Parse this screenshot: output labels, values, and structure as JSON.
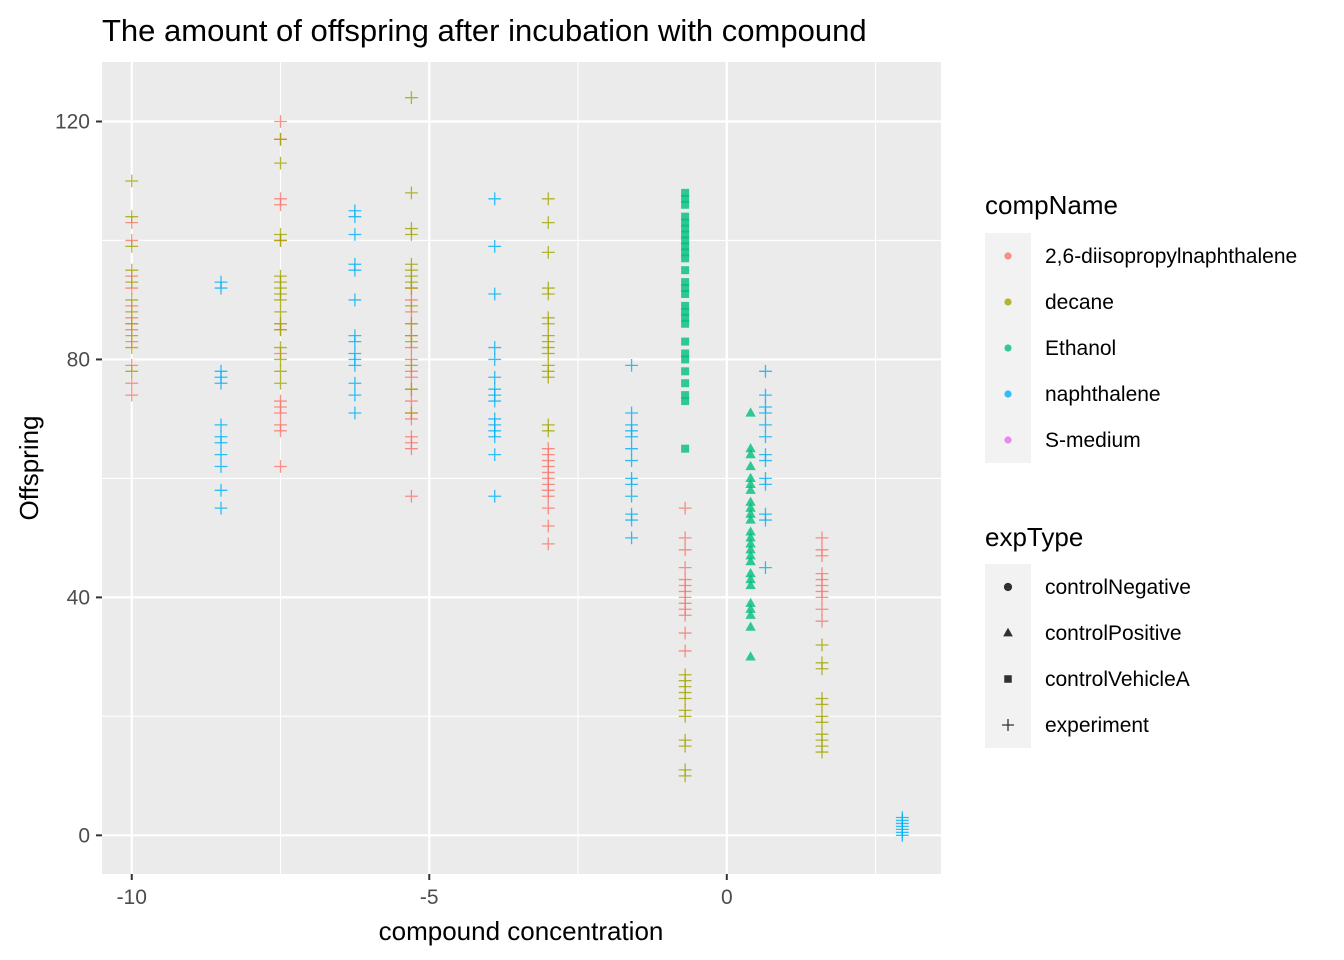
{
  "chart_data": {
    "type": "scatter",
    "title": "The amount of offspring after incubation with compound",
    "xlabel": "compound concentration",
    "ylabel": "Offspring",
    "xlim": [
      -10.5,
      3.6
    ],
    "ylim": [
      -6.5,
      130
    ],
    "xticks": [
      -10,
      -5,
      0
    ],
    "xtick_labels": [
      "-10",
      "-5",
      "0"
    ],
    "yticks": [
      0,
      40,
      80,
      120
    ],
    "ytick_labels": [
      "0",
      "40",
      "80",
      "120"
    ],
    "grid": true,
    "legend_placement": "right",
    "colors": {
      "2,6-diisopropylnaphthalene": "#F8766D",
      "decane": "#A3A500",
      "Ethanol": "#00BF7D",
      "naphthalene": "#00B0F6",
      "S-medium": "#E76BF3"
    },
    "legend_color": {
      "title": "compName",
      "items": [
        "2,6-diisopropylnaphthalene",
        "decane",
        "Ethanol",
        "naphthalene",
        "S-medium"
      ]
    },
    "legend_shape": {
      "title": "expType",
      "items": [
        {
          "label": "controlNegative",
          "shape": "circle"
        },
        {
          "label": "controlPositive",
          "shape": "triangle"
        },
        {
          "label": "controlVehicleA",
          "shape": "square"
        },
        {
          "label": "experiment",
          "shape": "plus"
        }
      ]
    },
    "series": [
      {
        "compName": "2,6-diisopropylnaphthalene",
        "expType": "experiment",
        "x": -10,
        "y": [
          74,
          76,
          79,
          83,
          85,
          86,
          87,
          89,
          92,
          94,
          100,
          103
        ]
      },
      {
        "compName": "decane",
        "expType": "experiment",
        "x": -10,
        "y": [
          78,
          82,
          84,
          86,
          88,
          90,
          93,
          95,
          99,
          104,
          110
        ]
      },
      {
        "compName": "naphthalene",
        "expType": "experiment",
        "x": -8.5,
        "y": [
          55,
          58,
          62,
          64,
          66,
          67,
          69,
          76,
          77,
          78,
          92,
          93
        ]
      },
      {
        "compName": "2,6-diisopropylnaphthalene",
        "expType": "experiment",
        "x": -7.5,
        "y": [
          62,
          68,
          69,
          71,
          72,
          73,
          81,
          85,
          86,
          100,
          106,
          107,
          117,
          120
        ]
      },
      {
        "compName": "decane",
        "expType": "experiment",
        "x": -7.5,
        "y": [
          76,
          78,
          80,
          82,
          85,
          86,
          88,
          90,
          91,
          92,
          93,
          94,
          100,
          101,
          113,
          117
        ]
      },
      {
        "compName": "naphthalene",
        "expType": "experiment",
        "x": -6.25,
        "y": [
          71,
          74,
          76,
          79,
          80,
          81,
          83,
          84,
          90,
          95,
          96,
          101,
          104,
          105
        ]
      },
      {
        "compName": "2,6-diisopropylnaphthalene",
        "expType": "experiment",
        "x": -5.3,
        "y": [
          57,
          65,
          66,
          67,
          70,
          71,
          73,
          75,
          77,
          78,
          80,
          82,
          84,
          86,
          88,
          90,
          92
        ]
      },
      {
        "compName": "decane",
        "expType": "experiment",
        "x": -5.3,
        "y": [
          71,
          75,
          79,
          83,
          84,
          86,
          89,
          92,
          93,
          94,
          95,
          96,
          101,
          102,
          108,
          124
        ]
      },
      {
        "compName": "naphthalene",
        "expType": "experiment",
        "x": -3.9,
        "y": [
          57,
          64,
          67,
          68,
          69,
          70,
          73,
          74,
          75,
          77,
          80,
          82,
          91,
          99,
          107
        ]
      },
      {
        "compName": "2,6-diisopropylnaphthalene",
        "expType": "experiment",
        "x": -3.0,
        "y": [
          49,
          52,
          55,
          57,
          58,
          59,
          60,
          61,
          62,
          63,
          64,
          65
        ]
      },
      {
        "compName": "decane",
        "expType": "experiment",
        "x": -3.0,
        "y": [
          68,
          69,
          77,
          78,
          79,
          81,
          82,
          83,
          84,
          86,
          87,
          91,
          92,
          98,
          103,
          107
        ]
      },
      {
        "compName": "naphthalene",
        "expType": "experiment",
        "x": -1.6,
        "y": [
          50,
          53,
          54,
          57,
          59,
          60,
          63,
          65,
          67,
          68,
          69,
          71,
          79
        ]
      },
      {
        "compName": "2,6-diisopropylnaphthalene",
        "expType": "experiment",
        "x": -0.7,
        "y": [
          31,
          34,
          37,
          38,
          39,
          40,
          41,
          42,
          43,
          45,
          48,
          50,
          55
        ]
      },
      {
        "compName": "decane",
        "expType": "experiment",
        "x": -0.7,
        "y": [
          10,
          11,
          15,
          16,
          20,
          21,
          23,
          24,
          25,
          26,
          27
        ]
      },
      {
        "compName": "Ethanol",
        "expType": "controlVehicleA",
        "x": -0.7,
        "y": [
          65,
          73,
          74,
          76,
          78,
          80,
          81,
          83,
          86,
          87,
          88,
          89,
          91,
          92,
          93,
          95,
          97,
          98,
          99,
          100,
          101,
          102,
          103,
          104,
          106,
          107,
          108
        ]
      },
      {
        "compName": "Ethanol",
        "expType": "controlPositive",
        "x": 0.4,
        "y": [
          30,
          35,
          37,
          38,
          39,
          42,
          43,
          44,
          46,
          47,
          48,
          49,
          50,
          51,
          53,
          54,
          55,
          56,
          58,
          59,
          60,
          62,
          64,
          65,
          71
        ]
      },
      {
        "compName": "naphthalene",
        "expType": "experiment",
        "x": 0.65,
        "y": [
          45,
          53,
          54,
          59,
          60,
          63,
          64,
          67,
          69,
          71,
          72,
          74,
          78
        ]
      },
      {
        "compName": "2,6-diisopropylnaphthalene",
        "expType": "experiment",
        "x": 1.6,
        "y": [
          36,
          38,
          40,
          41,
          42,
          43,
          44,
          47,
          48,
          50
        ]
      },
      {
        "compName": "decane",
        "expType": "experiment",
        "x": 1.6,
        "y": [
          14,
          15,
          16,
          17,
          19,
          20,
          22,
          23,
          28,
          29,
          32
        ]
      },
      {
        "compName": "naphthalene",
        "expType": "experiment",
        "x": 2.95,
        "y": [
          0,
          0.5,
          1,
          1.5,
          2,
          2.5,
          3
        ]
      }
    ]
  }
}
